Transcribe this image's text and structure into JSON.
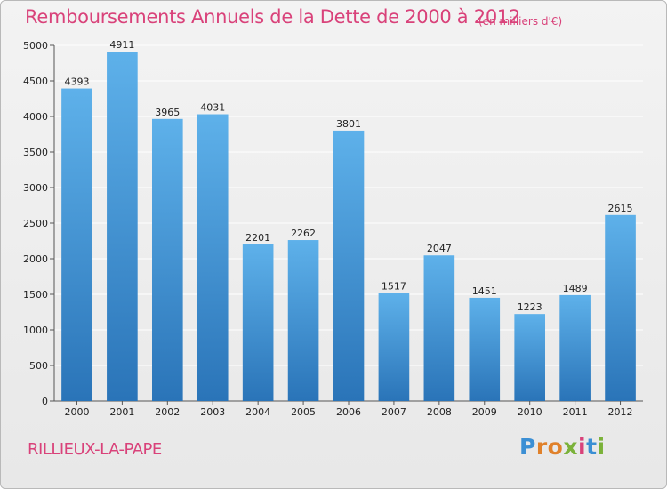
{
  "chart_data": {
    "type": "bar",
    "title": "Remboursements Annuels de la Dette de 2000 à 2012",
    "subtitle": "(en milliers d'€)",
    "categories": [
      "2000",
      "2001",
      "2002",
      "2003",
      "2004",
      "2005",
      "2006",
      "2007",
      "2008",
      "2009",
      "2010",
      "2011",
      "2012"
    ],
    "values": [
      4393,
      4911,
      3965,
      4031,
      2201,
      2262,
      3801,
      1517,
      2047,
      1451,
      1223,
      1489,
      2615
    ],
    "ylim": [
      0,
      5000
    ],
    "yticks": [
      0,
      500,
      1000,
      1500,
      2000,
      2500,
      3000,
      3500,
      4000,
      4500,
      5000
    ],
    "grid": true,
    "bar_color": "#3a8fd6",
    "bar_color_light": "#5eb1ea",
    "bar_color_dark": "#2a74b8"
  },
  "commune": "RILLIEUX-LA-PAPE",
  "logo": [
    "P",
    "r",
    "o",
    "x",
    "i",
    "t",
    "i"
  ],
  "colors": {
    "accent": "#d9427a",
    "grid": "#ffffff",
    "background": "#ececec"
  }
}
